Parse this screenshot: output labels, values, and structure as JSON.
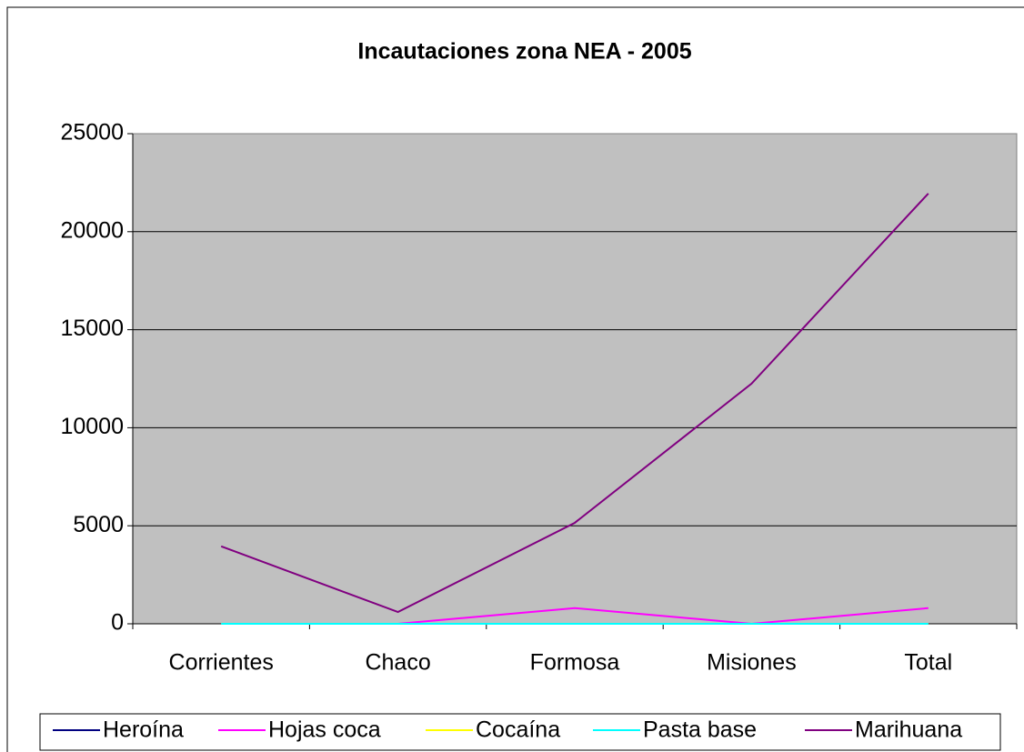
{
  "chart_data": {
    "type": "line",
    "title": "Incautaciones zona NEA - 2005",
    "categories": [
      "Corrientes",
      "Chaco",
      "Formosa",
      "Misiones",
      "Total"
    ],
    "series": [
      {
        "name": "Heroína",
        "color": "#000080",
        "values": [
          0,
          0,
          0,
          0,
          0
        ]
      },
      {
        "name": "Hojas coca",
        "color": "#ff00ff",
        "values": [
          0,
          0,
          800,
          0,
          800
        ]
      },
      {
        "name": "Cocaína",
        "color": "#ffff00",
        "values": [
          0,
          0,
          0,
          0,
          0
        ]
      },
      {
        "name": "Pasta base",
        "color": "#00ffff",
        "values": [
          0,
          0,
          0,
          0,
          0
        ]
      },
      {
        "name": "Marihuana",
        "color": "#800080",
        "values": [
          3950,
          600,
          5150,
          12250,
          21950
        ]
      }
    ],
    "ylim": [
      0,
      25000
    ],
    "yticks": [
      0,
      5000,
      10000,
      15000,
      20000,
      25000
    ],
    "grid": true,
    "legend": "bottom"
  }
}
